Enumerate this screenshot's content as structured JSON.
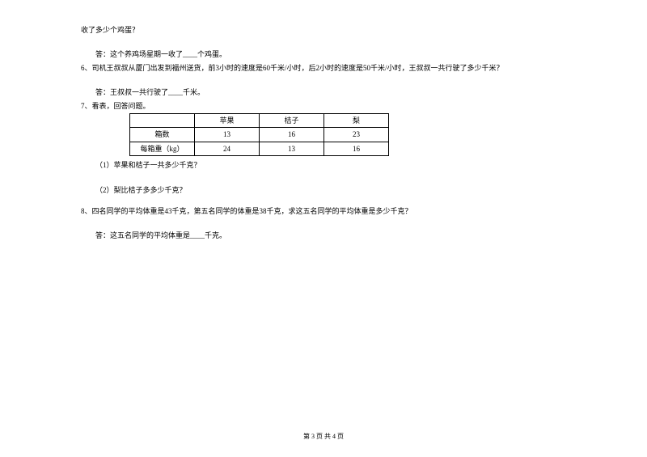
{
  "q5": {
    "tail": "收了多少个鸡蛋？",
    "answer_prefix": "答：这个养鸡场星期一收了____个鸡蛋。"
  },
  "q6": {
    "text": "6、司机王叔叔从厦门出发到福州送货，前3小时的速度是60千米/小时，后2小时的速度是50千米/小时，王叔叔一共行驶了多少千米？",
    "answer_prefix": "答：王叔叔一共行驶了____千米。"
  },
  "q7": {
    "prompt": "7、看表，回答问题。",
    "table": {
      "headers": [
        "",
        "苹果",
        "桔子",
        "梨"
      ],
      "rows": [
        [
          "箱数",
          "13",
          "16",
          "23"
        ],
        [
          "每箱重（kg）",
          "24",
          "13",
          "16"
        ]
      ]
    },
    "sub1": "（1）苹果和桔子一共多少千克？",
    "sub2": "（2）梨比桔子多多少千克？"
  },
  "q8": {
    "text": "8、四名同学的平均体重是43千克，第五名同学的体重是38千克，求这五名同学的平均体重是多少千克？",
    "answer_prefix": "答：这五名同学的平均体重是____千克。"
  },
  "footer": "第 3 页 共 4 页"
}
